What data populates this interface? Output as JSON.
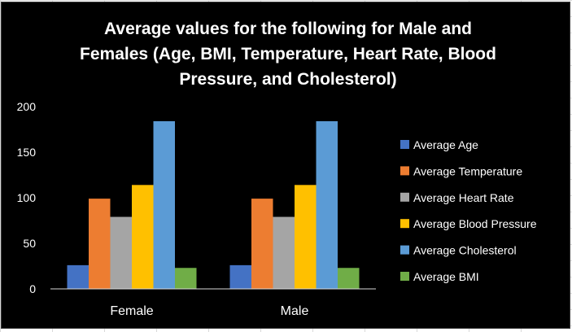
{
  "chart_data": {
    "type": "bar",
    "title_lines": [
      "Average values for the following for Male and",
      "Females (Age, BMI, Temperature, Heart Rate, Blood",
      "Pressure, and Cholesterol)"
    ],
    "categories": [
      "Female",
      "Male"
    ],
    "series": [
      {
        "name": "Average Age",
        "color": "#4472c4",
        "values": [
          26,
          26
        ]
      },
      {
        "name": "Average Temperature",
        "color": "#ed7d31",
        "values": [
          99,
          99
        ]
      },
      {
        "name": "Average Heart Rate",
        "color": "#a5a5a5",
        "values": [
          79,
          79
        ]
      },
      {
        "name": "Average Blood Pressure",
        "color": "#ffc000",
        "values": [
          114,
          114
        ]
      },
      {
        "name": "Average Cholesterol",
        "color": "#5b9bd5",
        "values": [
          184,
          184
        ]
      },
      {
        "name": "Average BMI",
        "color": "#70ad47",
        "values": [
          23,
          23
        ]
      }
    ],
    "y_ticks": [
      "0",
      "50",
      "100",
      "150",
      "200"
    ],
    "ylim": [
      0,
      200
    ],
    "grid": false,
    "legend_position": "right",
    "background": "#000000",
    "text_color": "#ffffff"
  }
}
